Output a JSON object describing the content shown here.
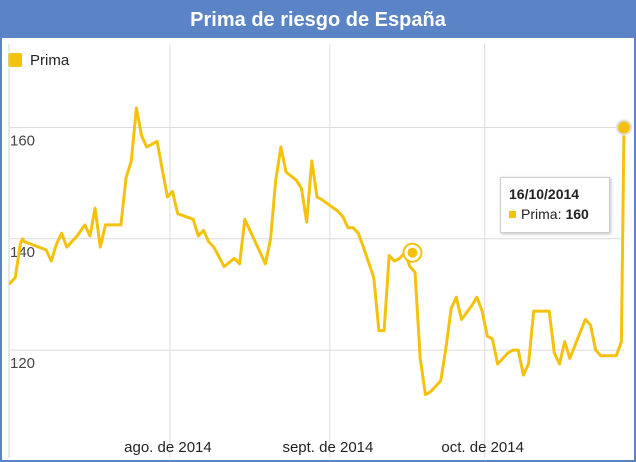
{
  "chart_data": {
    "type": "line",
    "title": "Prima de riesgo de España",
    "legend": {
      "label": "Prima",
      "color": "#f4c20d",
      "placement": "top-left"
    },
    "xlabel": "",
    "ylabel": "",
    "xlim": [
      0,
      119
    ],
    "ylim": [
      106,
      175
    ],
    "y_ticks": [
      120,
      140,
      160
    ],
    "x_ticks": [
      {
        "label": "ago. de 2014",
        "day": 31
      },
      {
        "label": "sept. de 2014",
        "day": 62
      },
      {
        "label": "oct. de 2014",
        "day": 92
      }
    ],
    "series": [
      {
        "name": "Prima",
        "color": "#f4c20d",
        "points": [
          [
            0,
            132
          ],
          [
            1,
            133
          ],
          [
            2,
            139
          ],
          [
            2.4,
            140
          ],
          [
            2.8,
            139.5
          ],
          [
            7,
            138
          ],
          [
            8,
            136
          ],
          [
            9,
            139
          ],
          [
            10,
            141
          ],
          [
            11,
            138.5
          ],
          [
            13,
            140.5
          ],
          [
            14.5,
            142.5
          ],
          [
            15.5,
            140.5
          ],
          [
            16.5,
            145.5
          ],
          [
            17.5,
            138.5
          ],
          [
            18.5,
            142.5
          ],
          [
            21.5,
            142.5
          ],
          [
            22.5,
            151
          ],
          [
            23.5,
            154
          ],
          [
            24.5,
            163.5
          ],
          [
            25.5,
            158.5
          ],
          [
            26.5,
            156.5
          ],
          [
            28.5,
            157.5
          ],
          [
            29.5,
            152.5
          ],
          [
            30.5,
            147.5
          ],
          [
            31.5,
            148.5
          ],
          [
            32.5,
            144.5
          ],
          [
            35.5,
            143.5
          ],
          [
            36.5,
            140.5
          ],
          [
            37.5,
            141.5
          ],
          [
            38.5,
            139.5
          ],
          [
            39.5,
            138.5
          ],
          [
            41.5,
            135
          ],
          [
            43.5,
            136.5
          ],
          [
            44.5,
            135.5
          ],
          [
            45.5,
            143.5
          ],
          [
            47.5,
            139.5
          ],
          [
            49.5,
            135.5
          ],
          [
            50.5,
            140
          ],
          [
            51.5,
            150.5
          ],
          [
            52.5,
            156.5
          ],
          [
            53.5,
            152
          ],
          [
            55.5,
            150.5
          ],
          [
            56.5,
            149
          ],
          [
            57.5,
            143
          ],
          [
            58.5,
            154
          ],
          [
            59.5,
            147.5
          ],
          [
            60.5,
            147
          ],
          [
            63.5,
            145
          ],
          [
            64.5,
            144
          ],
          [
            65.5,
            142
          ],
          [
            66.5,
            142
          ],
          [
            67.5,
            141
          ],
          [
            68.5,
            138.5
          ],
          [
            70.5,
            133
          ],
          [
            71.5,
            123.5
          ],
          [
            72.5,
            123.5
          ],
          [
            73.5,
            137
          ],
          [
            74.5,
            136
          ],
          [
            75.5,
            136.5
          ],
          [
            76.5,
            137.5
          ],
          [
            77.5,
            135
          ],
          [
            78.5,
            134
          ],
          [
            79.5,
            118.5
          ],
          [
            80.5,
            112
          ],
          [
            81.5,
            112.5
          ],
          [
            83.5,
            114.5
          ],
          [
            84.5,
            120.5
          ],
          [
            85.5,
            127.5
          ],
          [
            86.5,
            129.5
          ],
          [
            87.5,
            125.5
          ],
          [
            89.5,
            128
          ],
          [
            90.5,
            129.5
          ],
          [
            91.5,
            127
          ],
          [
            92.5,
            122.5
          ],
          [
            93.5,
            122
          ],
          [
            94.5,
            117.5
          ],
          [
            96.5,
            119.5
          ],
          [
            97.5,
            120
          ],
          [
            98.5,
            120
          ],
          [
            99.5,
            115.5
          ],
          [
            100.5,
            117.5
          ],
          [
            101.5,
            127
          ],
          [
            104.5,
            127
          ],
          [
            105.5,
            119.5
          ],
          [
            106.5,
            117.5
          ],
          [
            107.5,
            121.5
          ],
          [
            108.5,
            118.5
          ],
          [
            111.5,
            125.5
          ],
          [
            112.5,
            124.5
          ],
          [
            113.5,
            120
          ],
          [
            114.5,
            119
          ],
          [
            117.5,
            119
          ],
          [
            118.5,
            121.5
          ],
          [
            119,
            160
          ]
        ]
      }
    ],
    "highlight_points": [
      {
        "x": 78,
        "y": 137.5,
        "style": "ring"
      },
      {
        "x": 119,
        "y": 160,
        "style": "filled"
      }
    ],
    "tooltip": {
      "date": "16/10/2014",
      "series": "Prima",
      "value": "160"
    }
  }
}
